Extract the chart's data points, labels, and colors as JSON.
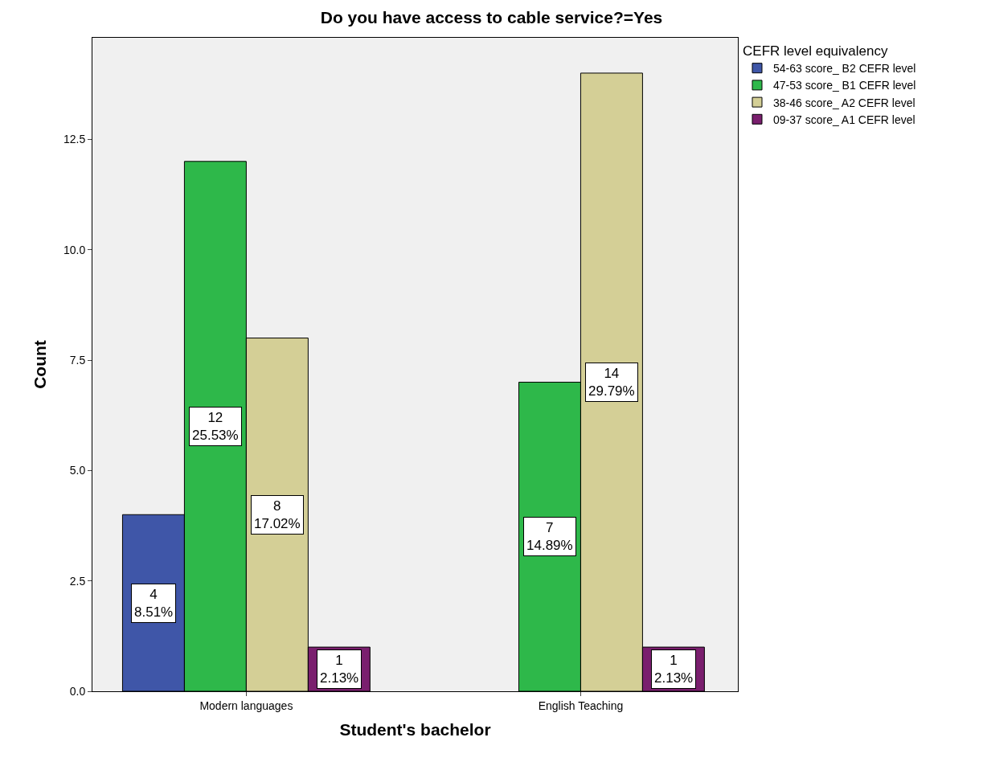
{
  "chart_data": {
    "type": "bar",
    "title": "Do you have access to cable service?=Yes",
    "xlabel": "Student's bachelor",
    "ylabel": "Count",
    "legend_title": "CEFR level equivalency",
    "legend": "top right",
    "categories": [
      "Modern languages",
      "English Teaching"
    ],
    "ylim": [
      0,
      14.8
    ],
    "yticks": [
      {
        "value": 0,
        "label": "0.0"
      },
      {
        "value": 2.5,
        "label": "2.5"
      },
      {
        "value": 5,
        "label": "5.0"
      },
      {
        "value": 7.5,
        "label": "7.5"
      },
      {
        "value": 10,
        "label": "10.0"
      },
      {
        "value": 12.5,
        "label": "12.5"
      }
    ],
    "series": [
      {
        "name": "54-63 score_ B2 CEFR level",
        "color": "#3f56a8",
        "values": [
          4,
          null
        ],
        "value_labels": [
          "4\n8.51%",
          null
        ]
      },
      {
        "name": "47-53 score_ B1 CEFR level",
        "color": "#2eb84a",
        "values": [
          12,
          7
        ],
        "value_labels": [
          "12\n25.53%",
          "7\n14.89%"
        ]
      },
      {
        "name": "38-46 score_ A2 CEFR level",
        "color": "#d4cf96",
        "values": [
          8,
          14
        ],
        "value_labels": [
          "8\n17.02%",
          "14\n29.79%"
        ]
      },
      {
        "name": "09-37 score_ A1 CEFR level",
        "color": "#7a1f6e",
        "values": [
          1,
          1
        ],
        "value_labels": [
          "1\n2.13%",
          "1\n2.13%"
        ]
      }
    ]
  }
}
